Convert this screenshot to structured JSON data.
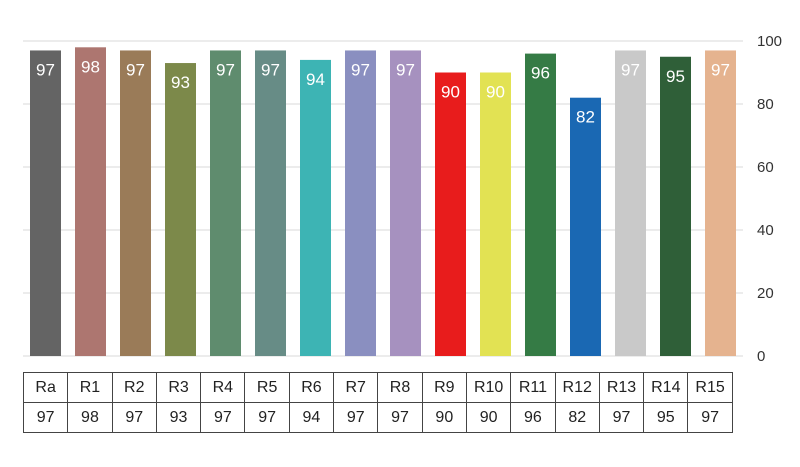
{
  "chart_data": {
    "type": "bar",
    "categories": [
      "Ra",
      "R1",
      "R2",
      "R3",
      "R4",
      "R5",
      "R6",
      "R7",
      "R8",
      "R9",
      "R10",
      "R11",
      "R12",
      "R13",
      "R14",
      "R15"
    ],
    "values": [
      97,
      98,
      97,
      93,
      97,
      97,
      94,
      97,
      97,
      90,
      90,
      96,
      82,
      97,
      95,
      97
    ],
    "colors": [
      "#646464",
      "#ad7670",
      "#9a7b58",
      "#7c894a",
      "#5f8c6e",
      "#678c86",
      "#3db4b4",
      "#8a8fc0",
      "#a691bf",
      "#e81c1c",
      "#e2e253",
      "#357b45",
      "#1a68b3",
      "#c9c9c9",
      "#2f5f38",
      "#e5b38f"
    ],
    "yticks": [
      0,
      20,
      40,
      60,
      80,
      100
    ],
    "ylim": [
      0,
      100
    ],
    "y_axis_side": "right",
    "grid": true,
    "data_labels": true,
    "table_below": true,
    "title": "",
    "xlabel": "",
    "ylabel": ""
  }
}
